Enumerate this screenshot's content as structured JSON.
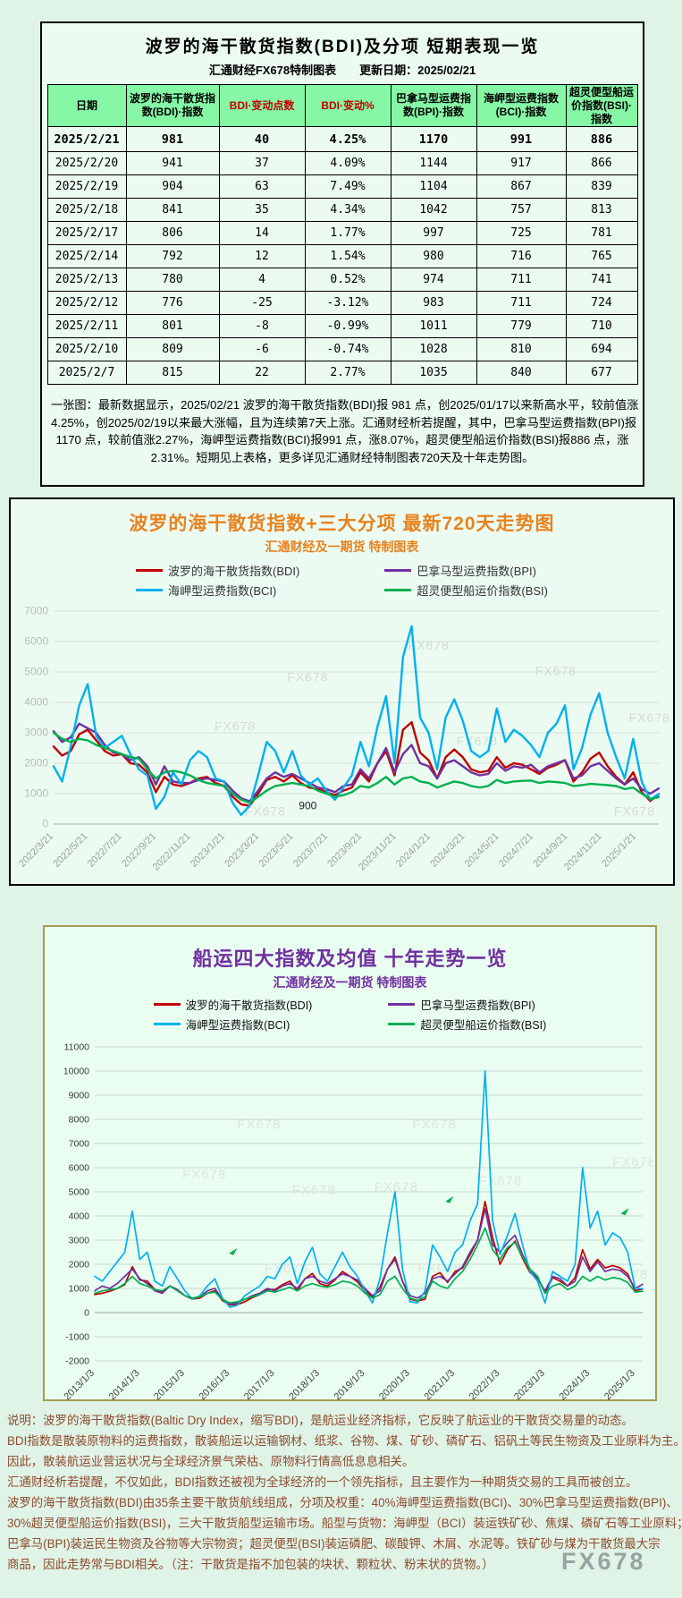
{
  "page": {
    "logo": "FX678",
    "background": "#dff3e6"
  },
  "colors": {
    "header_green": "#85f7a5",
    "title_orange": "#e8821e",
    "title_purple": "#7030a0",
    "bdi_red": "#c00000",
    "bpi_purple": "#7030a0",
    "bci_blue": "#00b0f0",
    "bsi_green": "#00b050",
    "note_brown": "#8f4a2d",
    "panel3_border_olive": "#a59c52"
  },
  "table_panel": {
    "title": "波罗的海干散货指数(BDI)及分项 短期表现一览",
    "source_line": "汇通财经FX678特制图表　　更新日期：2025/02/21",
    "columns": [
      "日期",
      "波罗的海干散货指数(BDI)·指数",
      "BDI·变动点数",
      "BDI·变动%",
      "巴拿马型运费指数(BPI)·指数",
      "海岬型运费指数(BCI)·指数",
      "超灵便型船运价指数(BSI)·指数"
    ],
    "rows": [
      [
        "2025/2/21",
        "981",
        "40",
        "4.25%",
        "1170",
        "991",
        "886"
      ],
      [
        "2025/2/20",
        "941",
        "37",
        "4.09%",
        "1144",
        "917",
        "866"
      ],
      [
        "2025/2/19",
        "904",
        "63",
        "7.49%",
        "1104",
        "867",
        "839"
      ],
      [
        "2025/2/18",
        "841",
        "35",
        "4.34%",
        "1042",
        "757",
        "813"
      ],
      [
        "2025/2/17",
        "806",
        "14",
        "1.77%",
        "997",
        "725",
        "781"
      ],
      [
        "2025/2/14",
        "792",
        "12",
        "1.54%",
        "980",
        "716",
        "765"
      ],
      [
        "2025/2/13",
        "780",
        "4",
        "0.52%",
        "974",
        "711",
        "741"
      ],
      [
        "2025/2/12",
        "776",
        "-25",
        "-3.12%",
        "983",
        "711",
        "724"
      ],
      [
        "2025/2/11",
        "801",
        "-8",
        "-0.99%",
        "1011",
        "779",
        "710"
      ],
      [
        "2025/2/10",
        "809",
        "-6",
        "-0.74%",
        "1028",
        "810",
        "694"
      ],
      [
        "2025/2/7",
        "815",
        "22",
        "2.77%",
        "1035",
        "840",
        "677"
      ]
    ],
    "note_lines": [
      "一张图：最新数据显示，2025/02/21 波罗的海干散货指数(BDI)报 981 点，创2025/01/17以来新高水平，较前值涨",
      "4.25%，创2025/02/19以来最大涨幅，且为连续第7天上涨。汇通财经析若提醒，其中，巴拿马型运费指数(BPI)报",
      "1170 点，较前值涨2.27%，海岬型运费指数(BCI)报991 点，涨8.07%，超灵便型船运价指数(BSI)报886 点，涨",
      "2.31%。短期见上表格，更多详见汇通财经特制图表720天及十年走势图。"
    ]
  },
  "chart720": {
    "title": "波罗的海干散货指数+三大分项  最新720天走势图",
    "subtitle": "汇通财经及一期货 特制图表"
  },
  "chart10y": {
    "title": "船运四大指数及均值 十年走势一览",
    "subtitle": "汇通财经及一期货 特制图表"
  },
  "description_lines": [
    "说明：波罗的海干散货指数(Baltic Dry Index，缩写BDI)，是航运业经济指标，它反映了航运业的干散货交易量的动态。",
    "BDI指数是散装原物料的运费指数，散装船运以运输钢材、纸浆、谷物、煤、矿砂、磷矿石、铝矾土等民生物资及工业原料为主。",
    "因此，散装航运业营运状况与全球经济景气荣枯、原物料行情高低息息相关。",
    "汇通财经析若提醒，不仅如此，BDI指数还被视为全球经济的一个领先指标，且主要作为一种期货交易的工具而被创立。",
    "波罗的海干散货指数(BDI)由35条主要干散货航线组成，分项及权重：40%海岬型运费指数(BCI)、30%巴拿马型运费指数(BPI)、",
    "30%超灵便型船运价指数(BSI)，三大干散货船型运输市场。船型与货物：海岬型（BCI）装运铁矿砂、焦煤、磷矿石等工业原料；",
    "巴拿马(BPI)装运民生物资及谷物等大宗物资；超灵便型(BSI)装运磷肥、碳酸钾、木屑、水泥等。铁矿砂与煤为干散货最大宗",
    "商品，因此走势常与BDI相关。（注：干散货是指不加包装的块状、颗粒状、粉末状的货物。）"
  ],
  "chart_data": [
    {
      "type": "line",
      "title": "波罗的海干散货指数+三大分项  最新720天走势图",
      "subtitle": "汇通财经及一期货 特制图表",
      "xlabel": "",
      "ylabel": "",
      "ylim": [
        0,
        7000
      ],
      "ytick_step": 1000,
      "grid": true,
      "legend_position": "top",
      "watermark": "FX678",
      "x_tick_labels": [
        "2022/3/21",
        "2022/5/21",
        "2022/7/21",
        "2022/9/21",
        "2022/11/21",
        "2023/1/21",
        "2023/3/21",
        "2023/5/21",
        "2023/7/21",
        "2023/9/21",
        "2023/11/21",
        "2024/1/21",
        "2024/3/21",
        "2024/5/21",
        "2024/7/21",
        "2024/9/21",
        "2024/11/21",
        "2025/1/21"
      ],
      "annotations": [
        {
          "text": "900",
          "x_frac": 0.42,
          "value": 900
        }
      ],
      "series": [
        {
          "name": "波罗的海干散货指数(BDI)",
          "color": "#c00000",
          "values": [
            2550,
            2250,
            2400,
            2950,
            3100,
            2750,
            2400,
            2250,
            2300,
            2000,
            1950,
            1700,
            1050,
            1550,
            1300,
            1250,
            1350,
            1500,
            1550,
            1350,
            1250,
            900,
            650,
            600,
            1000,
            1450,
            1550,
            1400,
            1600,
            1350,
            1200,
            1150,
            1050,
            950,
            1100,
            1200,
            1700,
            1400,
            2000,
            2400,
            1600,
            3100,
            3350,
            2350,
            2100,
            1500,
            2200,
            2450,
            2200,
            1800,
            1700,
            1750,
            2200,
            1850,
            2000,
            1950,
            1800,
            1650,
            1850,
            1950,
            2100,
            1400,
            1700,
            2150,
            2350,
            1900,
            1550,
            1300,
            1700,
            1050,
            760,
            981
          ]
        },
        {
          "name": "巴拿马型运费指数(BPI)",
          "color": "#7030a0",
          "values": [
            3050,
            2700,
            2850,
            3300,
            3150,
            3000,
            2600,
            2350,
            2300,
            2100,
            2200,
            1900,
            1300,
            1900,
            1400,
            1350,
            1350,
            1450,
            1500,
            1450,
            1400,
            1100,
            850,
            750,
            1100,
            1500,
            1700,
            1550,
            1650,
            1500,
            1350,
            1200,
            1150,
            1050,
            1250,
            1300,
            1800,
            1500,
            2000,
            2500,
            1700,
            2300,
            2600,
            2000,
            1900,
            1500,
            2000,
            2100,
            1900,
            1700,
            1600,
            1650,
            2000,
            1750,
            1900,
            1850,
            1950,
            1700,
            1900,
            2000,
            2100,
            1500,
            1600,
            1900,
            2000,
            1750,
            1500,
            1300,
            1500,
            1150,
            1000,
            1170
          ]
        },
        {
          "name": "海岬型运费指数(BCI)",
          "color": "#00b0f0",
          "values": [
            1900,
            1400,
            2550,
            3900,
            4600,
            2900,
            2500,
            2700,
            2900,
            2300,
            1800,
            1600,
            500,
            900,
            1700,
            1300,
            2100,
            2400,
            2200,
            1500,
            1400,
            700,
            300,
            600,
            1600,
            2700,
            2400,
            1700,
            2400,
            1600,
            1300,
            1500,
            1100,
            800,
            1200,
            1600,
            2700,
            1900,
            3200,
            4200,
            2000,
            5500,
            6500,
            3500,
            3000,
            1800,
            3500,
            4100,
            3400,
            2400,
            2200,
            2400,
            3800,
            2700,
            3100,
            2900,
            2600,
            2200,
            3000,
            3300,
            3900,
            1800,
            2500,
            3600,
            4300,
            3000,
            2200,
            1500,
            2800,
            1400,
            800,
            991
          ]
        },
        {
          "name": "超灵便型船运价指数(BSI)",
          "color": "#00b050",
          "values": [
            3000,
            2800,
            2700,
            2800,
            2750,
            2600,
            2500,
            2400,
            2300,
            2200,
            2150,
            1800,
            1500,
            1700,
            1750,
            1700,
            1600,
            1450,
            1350,
            1300,
            1250,
            1000,
            800,
            700,
            900,
            1100,
            1250,
            1300,
            1350,
            1300,
            1250,
            1100,
            1000,
            900,
            950,
            1050,
            1250,
            1200,
            1350,
            1550,
            1300,
            1500,
            1550,
            1400,
            1350,
            1200,
            1300,
            1400,
            1350,
            1250,
            1200,
            1250,
            1450,
            1350,
            1400,
            1420,
            1430,
            1350,
            1400,
            1380,
            1350,
            1250,
            1280,
            1320,
            1300,
            1280,
            1250,
            1150,
            1200,
            1000,
            820,
            886
          ]
        }
      ]
    },
    {
      "type": "line",
      "title": "船运四大指数及均值 十年走势一览",
      "subtitle": "汇通财经及一期货 特制图表",
      "xlabel": "",
      "ylabel": "",
      "ylim": [
        -2000,
        11000
      ],
      "ytick_step": 1000,
      "grid": true,
      "legend_position": "top",
      "watermark": "FX678",
      "x_tick_labels": [
        "2013/1/3",
        "2014/1/3",
        "2015/1/3",
        "2016/1/3",
        "2017/1/3",
        "2018/1/3",
        "2019/1/3",
        "2020/1/3",
        "2021/1/3",
        "2022/1/3",
        "2023/1/3",
        "2024/1/3",
        "2025/1/3"
      ],
      "annotations": [],
      "series": [
        {
          "name": "波罗的海干散货指数(BDI)",
          "color": "#c00000",
          "values": [
            750,
            800,
            880,
            1000,
            1150,
            1900,
            1350,
            1300,
            950,
            850,
            1100,
            950,
            700,
            560,
            600,
            800,
            900,
            500,
            320,
            330,
            450,
            620,
            750,
            960,
            950,
            1150,
            1300,
            900,
            1400,
            1620,
            1200,
            1100,
            1350,
            1700,
            1500,
            1270,
            900,
            650,
            1050,
            1800,
            2300,
            1300,
            550,
            480,
            550,
            1500,
            1650,
            1250,
            1700,
            1850,
            2400,
            3000,
            4600,
            3100,
            2000,
            2600,
            2950,
            2250,
            1650,
            1450,
            800,
            1450,
            1300,
            1100,
            1450,
            2600,
            1800,
            2200,
            1850,
            1950,
            1850,
            1600,
            900,
            981
          ]
        },
        {
          "name": "巴拿马型运费指数(BPI)",
          "color": "#7030a0",
          "values": [
            900,
            1100,
            1000,
            1200,
            1500,
            1800,
            1400,
            1200,
            900,
            800,
            1100,
            950,
            700,
            600,
            650,
            900,
            1000,
            550,
            350,
            400,
            550,
            700,
            800,
            1000,
            900,
            1100,
            1200,
            1000,
            1400,
            1500,
            1300,
            1200,
            1400,
            1600,
            1500,
            1350,
            1000,
            700,
            900,
            1800,
            2200,
            1300,
            700,
            600,
            800,
            1400,
            1500,
            1300,
            1600,
            1900,
            2500,
            3000,
            4300,
            2800,
            2500,
            2900,
            3200,
            2400,
            1800,
            1400,
            900,
            1500,
            1400,
            1100,
            1300,
            2300,
            1700,
            2100,
            1700,
            1800,
            1750,
            1500,
            1000,
            1170
          ]
        },
        {
          "name": "海岬型运费指数(BCI)",
          "color": "#00b0f0",
          "values": [
            1500,
            1300,
            1700,
            2100,
            2500,
            4200,
            2200,
            2500,
            1300,
            1100,
            1900,
            1400,
            900,
            550,
            700,
            1100,
            1400,
            600,
            220,
            300,
            700,
            900,
            1100,
            1500,
            1400,
            2000,
            2300,
            1200,
            2100,
            2700,
            1600,
            1300,
            1900,
            2500,
            1900,
            1500,
            900,
            400,
            1400,
            3300,
            5000,
            1800,
            450,
            400,
            900,
            2800,
            2300,
            1700,
            2500,
            2800,
            3800,
            4500,
            10000,
            3800,
            2400,
            3200,
            4100,
            2800,
            1700,
            1300,
            400,
            1700,
            1500,
            1300,
            2000,
            6000,
            3500,
            4200,
            2800,
            3300,
            3100,
            2500,
            1000,
            991
          ]
        },
        {
          "name": "超灵便型船运价指数(BSI)",
          "color": "#00b050",
          "values": [
            800,
            900,
            950,
            1000,
            1200,
            1500,
            1200,
            1100,
            950,
            900,
            1100,
            900,
            700,
            600,
            650,
            800,
            850,
            550,
            400,
            450,
            550,
            650,
            750,
            900,
            850,
            950,
            1050,
            900,
            1100,
            1200,
            1100,
            1050,
            1150,
            1300,
            1250,
            1100,
            800,
            600,
            750,
            1300,
            1500,
            1000,
            600,
            500,
            650,
            1300,
            1100,
            1000,
            1400,
            1700,
            2200,
            2800,
            3500,
            2600,
            2200,
            2700,
            2900,
            2300,
            1800,
            1500,
            800,
            1100,
            1200,
            950,
            1100,
            1500,
            1300,
            1500,
            1350,
            1450,
            1400,
            1250,
            850,
            886
          ]
        }
      ]
    }
  ]
}
